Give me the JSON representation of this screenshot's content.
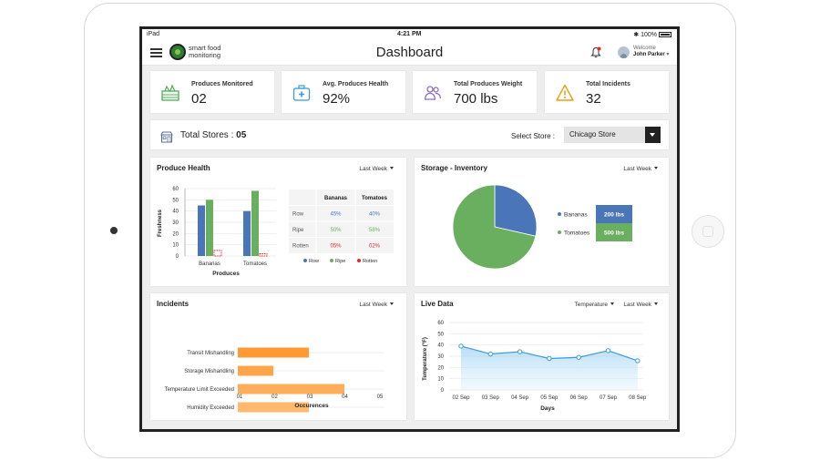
{
  "status": {
    "device": "iPad",
    "time": "4:21 PM",
    "battery": "100%"
  },
  "header": {
    "brand_line1": "smart food",
    "brand_line2": "monitoring",
    "title": "Dashboard",
    "welcome_label": "Welcome",
    "user_name": "John Parker"
  },
  "kpis": [
    {
      "label": "Produces Monitored",
      "value": "02"
    },
    {
      "label": "Avg. Produces Health",
      "value": "92%"
    },
    {
      "label": "Total Produces Weight",
      "value": "700 lbs"
    },
    {
      "label": "Total Incidents",
      "value": "32"
    }
  ],
  "stores": {
    "label": "Total Stores :",
    "count": "05",
    "select_label": "Select Store :",
    "selected": "Chicago Store"
  },
  "colors": {
    "accent_blue": "#4a76b9",
    "ripe_green": "#6aaf5f",
    "rotten_red": "#e8262c",
    "orange": "#ff9933"
  },
  "produce_health": {
    "title": "Produce Health",
    "range": "Last Week",
    "table_headers": [
      "",
      "Bananas",
      "Tomatoes"
    ],
    "table_rows": [
      [
        "Row",
        "45%",
        "40%"
      ],
      [
        "Ripe",
        "50%",
        "58%"
      ],
      [
        "Rotten",
        "05%",
        "02%"
      ]
    ],
    "legend": [
      "Row",
      "Ripe",
      "Rotten"
    ]
  },
  "storage": {
    "title": "Storage - Inventory",
    "range": "Last Week",
    "items": [
      {
        "name": "Bananas",
        "weight": "200 lbs"
      },
      {
        "name": "Tomatoes",
        "weight": "500 lbs"
      }
    ]
  },
  "incidents": {
    "title": "Incidents",
    "range": "Last Week"
  },
  "live": {
    "title": "Live Data",
    "metric": "Temperature",
    "range": "Last Week"
  },
  "chart_data": [
    {
      "type": "bar",
      "title": "Produce Health",
      "categories": [
        "Bananas",
        "Tomatoes"
      ],
      "series": [
        {
          "name": "Row",
          "values": [
            45,
            40
          ],
          "color": "#4a76b9"
        },
        {
          "name": "Ripe",
          "values": [
            50,
            58
          ],
          "color": "#6aaf5f"
        },
        {
          "name": "Rotten",
          "values": [
            5,
            2
          ],
          "color": "#e8262c"
        }
      ],
      "ylabel": "Freshness",
      "xlabel": "Produces",
      "ylim": [
        0,
        60
      ],
      "yticks": [
        "0",
        "10",
        "20",
        "30",
        "40",
        "50",
        "60"
      ]
    },
    {
      "type": "pie",
      "title": "Storage - Inventory",
      "labels": [
        "Bananas",
        "Tomatoes"
      ],
      "values": [
        200,
        500
      ],
      "colors": [
        "#4a76b9",
        "#6aaf5f"
      ]
    },
    {
      "type": "bar",
      "orientation": "horizontal",
      "title": "Incidents",
      "categories": [
        "Transit Mishandling",
        "Storage Mishandling",
        "Temperature Limit Exceeded",
        "Humidity Exceeded"
      ],
      "values": [
        2,
        1,
        3,
        2
      ],
      "colors": [
        "#ff9933",
        "#ffa448",
        "#ffad5a",
        "#ffb96e"
      ],
      "xlabel": "Occurences",
      "xlim": [
        0,
        5
      ],
      "xticks": [
        "01",
        "02",
        "03",
        "04",
        "05"
      ]
    },
    {
      "type": "area",
      "title": "Live Data",
      "x": [
        "02 Sep",
        "03 Sep",
        "04 Sep",
        "05 Sep",
        "06 Sep",
        "07 Sep",
        "08 Sep"
      ],
      "values": [
        39,
        32,
        34,
        28,
        29,
        35,
        26
      ],
      "ylabel": "Temperature (°F)",
      "xlabel": "Days",
      "ylim": [
        0,
        60
      ],
      "yticks": [
        "0",
        "10",
        "20",
        "30",
        "40",
        "50",
        "60"
      ],
      "color": "#3a9bd8"
    }
  ]
}
